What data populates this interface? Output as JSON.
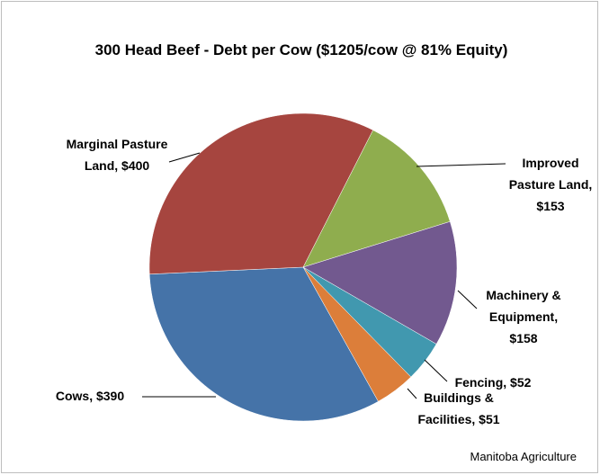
{
  "chart_data": {
    "type": "pie",
    "title": "300 Head Beef  - Debt per Cow ($1205/cow @ 81% Equity)",
    "values": [
      153,
      158,
      52,
      51,
      390,
      400
    ],
    "value_labels": [
      "Improved Pasture Land, $153",
      "Machinery & Equipment, $158",
      "Fencing, $52",
      "Buildings & Facilities, $51",
      "Cows, $390",
      "Marginal Pasture Land, $400"
    ],
    "colors": [
      "#8fad4e",
      "#72598f",
      "#4198af",
      "#dc7e3a",
      "#4573a8",
      "#a6453f"
    ],
    "start_angle": 27,
    "source": "Manitoba Agriculture"
  }
}
